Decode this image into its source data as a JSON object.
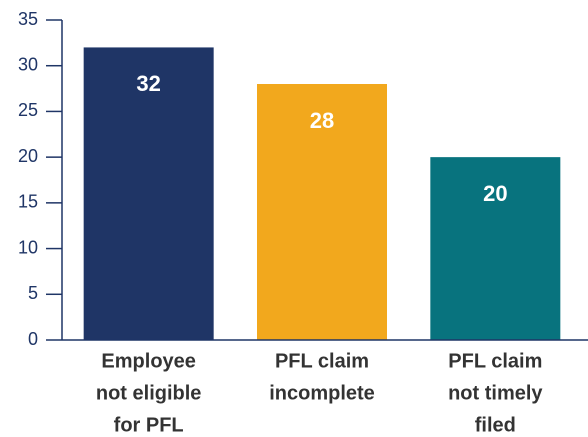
{
  "chart_data": {
    "type": "bar",
    "categories": [
      [
        "Employee",
        "not eligible",
        "for PFL"
      ],
      [
        "PFL claim",
        "incomplete"
      ],
      [
        "PFL claim",
        "not timely",
        "filed"
      ]
    ],
    "values": [
      32,
      28,
      20
    ],
    "colors": [
      "#1f3566",
      "#f2a81d",
      "#08737e"
    ],
    "ylim": [
      0,
      35
    ],
    "yticks": [
      0,
      5,
      10,
      15,
      20,
      25,
      30,
      35
    ],
    "grid": false
  }
}
